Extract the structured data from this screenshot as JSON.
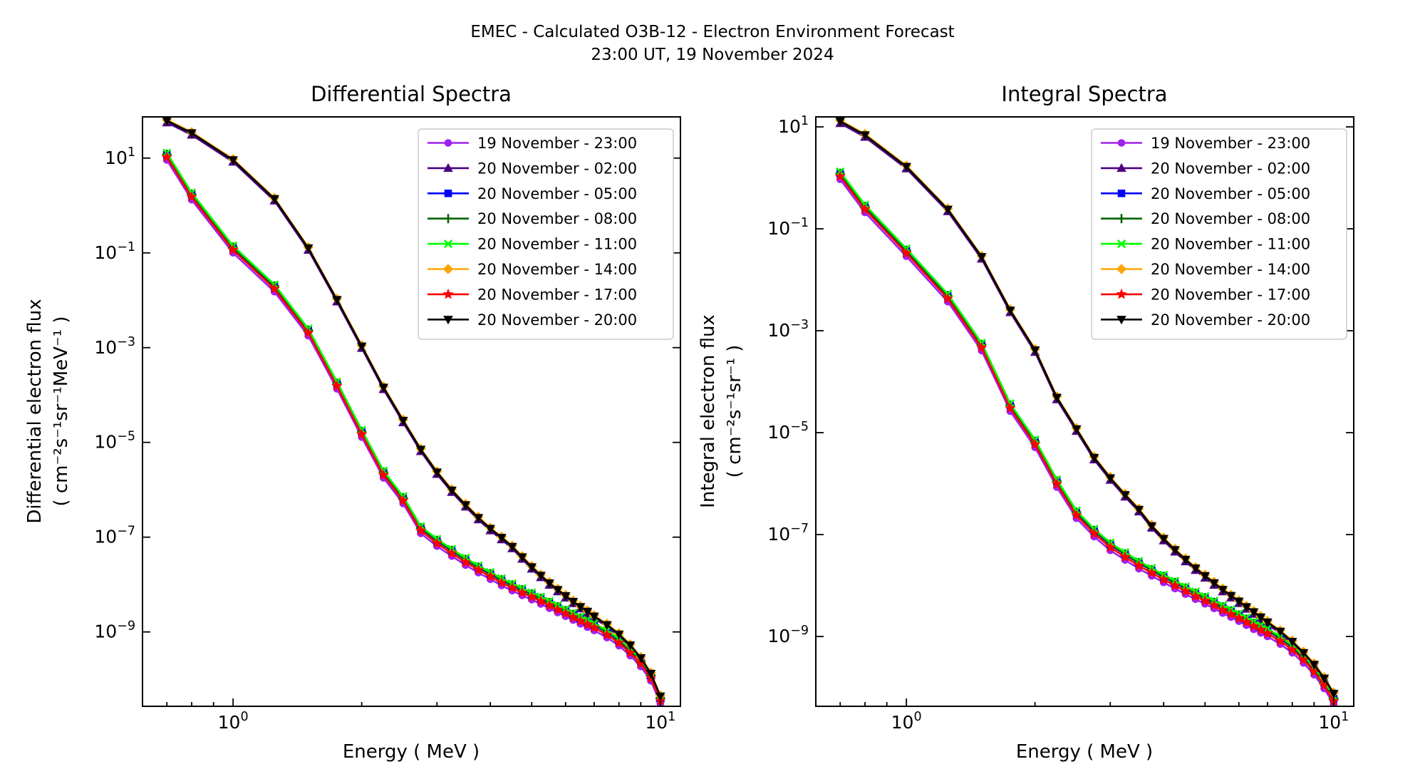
{
  "figure": {
    "suptitle_line1": "EMEC - Calculated O3B-12 - Electron Environment Forecast",
    "suptitle_line2": "23:00 UT, 19 November 2024"
  },
  "legend_labels": [
    "19 November - 23:00",
    "20 November - 02:00",
    "20 November - 05:00",
    "20 November - 08:00",
    "20 November - 11:00",
    "20 November - 14:00",
    "20 November - 17:00",
    "20 November - 20:00"
  ],
  "chart_data": [
    {
      "type": "line",
      "title": "Differential Spectra",
      "xlabel": "Energy ( MeV )",
      "ylabel_line1": "Differential electron flux",
      "ylabel_line2": "( cm⁻²s⁻¹sr⁻¹MeV⁻¹ )",
      "x_scale": "log",
      "y_scale": "log",
      "legend_location": "upper right",
      "grid": false,
      "x_mev": [
        0.7,
        0.8,
        1.0,
        1.25,
        1.5,
        1.75,
        2.0,
        2.25,
        2.5,
        2.75,
        3.0,
        3.25,
        3.5,
        3.75,
        4.0,
        4.25,
        4.5,
        4.75,
        5.0,
        5.25,
        5.5,
        5.75,
        6.0,
        6.25,
        6.5,
        6.75,
        7.0,
        7.5,
        8.0,
        8.5,
        9.0,
        9.5,
        10.0
      ],
      "x_log10_range": [
        -0.212,
        1.047
      ],
      "y_log10_range": [
        -10.57,
        1.87
      ],
      "x_major_tick_exponents": [
        0,
        1
      ],
      "x_minor_ticks": [
        0.7,
        0.8,
        0.9,
        2,
        3,
        4,
        5,
        6,
        7,
        8,
        9
      ],
      "y_major_tick_exponents": [
        1,
        -1,
        -3,
        -5,
        -7,
        -9
      ],
      "bundle_log10_flux": {
        "upper": [
          1.79,
          1.53,
          0.96,
          0.14,
          -0.9,
          -1.99,
          -2.97,
          -3.84,
          -4.54,
          -5.15,
          -5.63,
          -6.01,
          -6.32,
          -6.59,
          -6.82,
          -7.01,
          -7.2,
          -7.42,
          -7.63,
          -7.81,
          -7.97,
          -8.11,
          -8.24,
          -8.36,
          -8.47,
          -8.57,
          -8.67,
          -8.85,
          -9.05,
          -9.28,
          -9.55,
          -9.88,
          -10.36
        ],
        "lower": [
          1.03,
          0.19,
          -0.93,
          -1.75,
          -2.68,
          -3.8,
          -4.82,
          -5.68,
          -6.22,
          -6.85,
          -7.12,
          -7.33,
          -7.52,
          -7.68,
          -7.82,
          -7.95,
          -8.06,
          -8.16,
          -8.25,
          -8.34,
          -8.43,
          -8.52,
          -8.6,
          -8.68,
          -8.76,
          -8.83,
          -8.9,
          -9.05,
          -9.22,
          -9.43,
          -9.66,
          -9.96,
          -10.44
        ]
      },
      "series": [
        {
          "label": "19 November - 23:00",
          "color": "#A020F0",
          "marker": "circle",
          "bundle": "lower",
          "log10_offset": -0.07
        },
        {
          "label": "20 November - 02:00",
          "color": "#4B0082",
          "marker": "triangle-up",
          "bundle": "upper",
          "log10_offset": -0.04
        },
        {
          "label": "20 November - 05:00",
          "color": "#0000FF",
          "marker": "square",
          "bundle": "lower",
          "log10_offset": 0.04
        },
        {
          "label": "20 November - 08:00",
          "color": "#006400",
          "marker": "plus",
          "bundle": "lower",
          "log10_offset": 0.05
        },
        {
          "label": "20 November - 11:00",
          "color": "#00FF00",
          "marker": "x",
          "bundle": "lower",
          "log10_offset": 0.08
        },
        {
          "label": "20 November - 14:00",
          "color": "#FFA500",
          "marker": "diamond",
          "bundle": "upper",
          "log10_offset": 0.02
        },
        {
          "label": "20 November - 17:00",
          "color": "#FF0000",
          "marker": "star",
          "bundle": "lower",
          "log10_offset": -0.01
        },
        {
          "label": "20 November - 20:00",
          "color": "#000000",
          "marker": "triangle-down",
          "bundle": "upper",
          "log10_offset": 0.0
        }
      ],
      "note": "Eight forecast spectra form two visually coincident bundles; each series = bundle curve + small log10 offset. Values are log10 of flux."
    },
    {
      "type": "line",
      "title": "Integral Spectra",
      "xlabel": "Energy ( MeV )",
      "ylabel_line1": "Integral electron flux",
      "ylabel_line2": "( cm⁻²s⁻¹sr⁻¹ )",
      "x_scale": "log",
      "y_scale": "log",
      "legend_location": "upper right",
      "grid": false,
      "x_mev": [
        0.7,
        0.8,
        1.0,
        1.25,
        1.5,
        1.75,
        2.0,
        2.25,
        2.5,
        2.75,
        3.0,
        3.25,
        3.5,
        3.75,
        4.0,
        4.25,
        4.5,
        4.75,
        5.0,
        5.25,
        5.5,
        5.75,
        6.0,
        6.25,
        6.5,
        6.75,
        7.0,
        7.5,
        8.0,
        8.5,
        9.0,
        9.5,
        10.0
      ],
      "x_log10_range": [
        -0.212,
        1.047
      ],
      "y_log10_range": [
        -10.37,
        1.196
      ],
      "x_major_tick_exponents": [
        0,
        1
      ],
      "x_minor_ticks": [
        0.7,
        0.8,
        0.9,
        2,
        3,
        4,
        5,
        6,
        7,
        8,
        9
      ],
      "y_major_tick_exponents": [
        1,
        -1,
        -3,
        -5,
        -7,
        -9
      ],
      "bundle_log10_flux": {
        "upper": [
          1.11,
          0.84,
          0.22,
          -0.62,
          -1.55,
          -2.6,
          -3.38,
          -4.31,
          -4.93,
          -5.49,
          -5.89,
          -6.22,
          -6.51,
          -6.83,
          -7.08,
          -7.3,
          -7.49,
          -7.66,
          -7.81,
          -7.95,
          -8.08,
          -8.2,
          -8.31,
          -8.42,
          -8.52,
          -8.62,
          -8.72,
          -8.9,
          -9.1,
          -9.32,
          -9.55,
          -9.82,
          -10.12
        ],
        "lower": [
          0.04,
          -0.61,
          -1.47,
          -2.36,
          -3.32,
          -4.51,
          -5.22,
          -6.0,
          -6.61,
          -6.97,
          -7.24,
          -7.43,
          -7.6,
          -7.74,
          -7.87,
          -7.99,
          -8.1,
          -8.2,
          -8.29,
          -8.38,
          -8.47,
          -8.55,
          -8.63,
          -8.71,
          -8.79,
          -8.86,
          -8.93,
          -9.08,
          -9.25,
          -9.45,
          -9.68,
          -9.95,
          -10.26
        ]
      },
      "series": [
        {
          "label": "19 November - 23:00",
          "color": "#A020F0",
          "marker": "circle",
          "bundle": "lower",
          "log10_offset": -0.07
        },
        {
          "label": "20 November - 02:00",
          "color": "#4B0082",
          "marker": "triangle-up",
          "bundle": "upper",
          "log10_offset": -0.04
        },
        {
          "label": "20 November - 05:00",
          "color": "#0000FF",
          "marker": "square",
          "bundle": "lower",
          "log10_offset": 0.04
        },
        {
          "label": "20 November - 08:00",
          "color": "#006400",
          "marker": "plus",
          "bundle": "lower",
          "log10_offset": 0.05
        },
        {
          "label": "20 November - 11:00",
          "color": "#00FF00",
          "marker": "x",
          "bundle": "lower",
          "log10_offset": 0.08
        },
        {
          "label": "20 November - 14:00",
          "color": "#FFA500",
          "marker": "diamond",
          "bundle": "upper",
          "log10_offset": 0.02
        },
        {
          "label": "20 November - 17:00",
          "color": "#FF0000",
          "marker": "star",
          "bundle": "lower",
          "log10_offset": -0.01
        },
        {
          "label": "20 November - 20:00",
          "color": "#000000",
          "marker": "triangle-down",
          "bundle": "upper",
          "log10_offset": 0.0
        }
      ],
      "note": "Eight forecast spectra form two visually coincident bundles; each series = bundle curve + small log10 offset. Values are log10 of flux."
    }
  ]
}
